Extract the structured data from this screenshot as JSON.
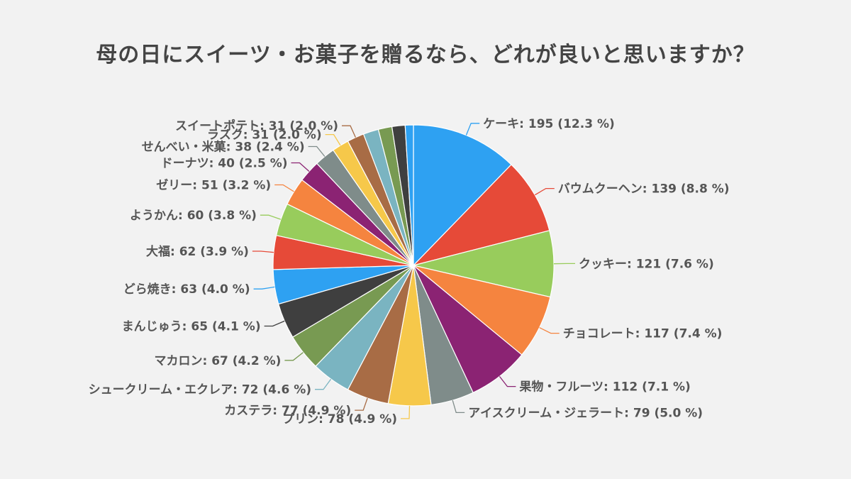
{
  "chart_data": {
    "type": "pie",
    "title": "母の日にスイーツ・お菓子を贈るなら、どれが良いと思いますか？",
    "legend": "none",
    "slices": [
      {
        "name": "ケーキ",
        "value": 195,
        "percent": 12.3,
        "label": "ケーキ: 195 (12.3 %)",
        "color": "#2ea1f2"
      },
      {
        "name": "バウムクーヘン",
        "value": 139,
        "percent": 8.8,
        "label": "バウムクーヘン: 139 (8.8 %)",
        "color": "#e64a38"
      },
      {
        "name": "クッキー",
        "value": 121,
        "percent": 7.6,
        "label": "クッキー: 121 (7.6 %)",
        "color": "#98cc5c"
      },
      {
        "name": "チョコレート",
        "value": 117,
        "percent": 7.4,
        "label": "チョコレート: 117 (7.4 %)",
        "color": "#f5843f"
      },
      {
        "name": "果物・フルーツ",
        "value": 112,
        "percent": 7.1,
        "label": "果物・フルーツ: 112 (7.1 %)",
        "color": "#8b2373"
      },
      {
        "name": "アイスクリーム・ジェラート",
        "value": 79,
        "percent": 5.0,
        "label": "アイスクリーム・ジェラート: 79 (5.0 %)",
        "color": "#7f8c8a"
      },
      {
        "name": "プリン",
        "value": 78,
        "percent": 4.9,
        "label": "プリン: 78 (4.9 %)",
        "color": "#f6c84a"
      },
      {
        "name": "カステラ",
        "value": 77,
        "percent": 4.9,
        "label": "カステラ: 77 (4.9 %)",
        "color": "#a86c45"
      },
      {
        "name": "シュークリーム・エクレア",
        "value": 72,
        "percent": 4.6,
        "label": "シュークリーム・エクレア: 72 (4.6 %)",
        "color": "#7ab4c1"
      },
      {
        "name": "マカロン",
        "value": 67,
        "percent": 4.2,
        "label": "マカロン: 67 (4.2 %)",
        "color": "#789a52"
      },
      {
        "name": "まんじゅう",
        "value": 65,
        "percent": 4.1,
        "label": "まんじゅう: 65 (4.1 %)",
        "color": "#3f3f3f"
      },
      {
        "name": "どら焼き",
        "value": 63,
        "percent": 4.0,
        "label": "どら焼き: 63 (4.0 %)",
        "color": "#2ea1f2"
      },
      {
        "name": "大福",
        "value": 62,
        "percent": 3.9,
        "label": "大福: 62 (3.9 %)",
        "color": "#e64a38"
      },
      {
        "name": "ようかん",
        "value": 60,
        "percent": 3.8,
        "label": "ようかん: 60 (3.8 %)",
        "color": "#98cc5c"
      },
      {
        "name": "ゼリー",
        "value": 51,
        "percent": 3.2,
        "label": "ゼリー: 51 (3.2 %)",
        "color": "#f5843f"
      },
      {
        "name": "ドーナツ",
        "value": 40,
        "percent": 2.5,
        "label": "ドーナツ: 40 (2.5 %)",
        "color": "#8b2373"
      },
      {
        "name": "せんべい・米菓",
        "value": 38,
        "percent": 2.4,
        "label": "せんべい・米菓: 38 (2.4 %)",
        "color": "#7f8c8a"
      },
      {
        "name": "ラスク",
        "value": 31,
        "percent": 2.0,
        "label": "ラスク: 31 (2.0 %)",
        "color": "#f6c84a"
      },
      {
        "name": "スイートポテト",
        "value": 31,
        "percent": 2.0,
        "label": "スイートポテト: 31 (2.0 %)",
        "color": "#a86c45"
      },
      {
        "name": "",
        "value": 28,
        "percent": 1.8,
        "label": "",
        "color": "#7ab4c1"
      },
      {
        "name": "",
        "value": 25,
        "percent": 1.6,
        "label": "",
        "color": "#789a52"
      },
      {
        "name": "",
        "value": 24,
        "percent": 1.5,
        "label": "",
        "color": "#3f3f3f"
      },
      {
        "name": "",
        "value": 15,
        "percent": 0.9,
        "label": "",
        "color": "#2ea1f2"
      }
    ]
  }
}
